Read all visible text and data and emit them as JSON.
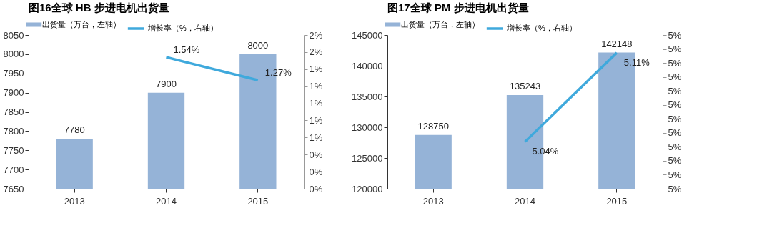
{
  "chart_data": [
    {
      "type": "bar",
      "title": "图16全球 HB 步进电机出货量",
      "categories": [
        "2013",
        "2014",
        "2015"
      ],
      "series": [
        {
          "name": "出货量（万台，左轴）",
          "color": "#95b3d7",
          "values": [
            7780,
            7900,
            8000
          ],
          "value_labels": [
            "7780",
            "7900",
            "8000"
          ]
        },
        {
          "name": "增长率（%，右轴）",
          "type": "line",
          "axis": "y2",
          "color": "#3fa9dc",
          "values": [
            null,
            1.54,
            1.27
          ],
          "value_labels": [
            null,
            "1.54%",
            "1.27%"
          ]
        }
      ],
      "ylim": [
        7650,
        8050
      ],
      "yticks": [
        7650,
        7700,
        7750,
        7800,
        7850,
        7900,
        7950,
        8000,
        8050
      ],
      "y2lim": [
        0,
        1.8
      ],
      "y2ticks": [
        {
          "value": 0,
          "label": "0%"
        },
        {
          "value": 0.2,
          "label": "0%"
        },
        {
          "value": 0.4,
          "label": "0%"
        },
        {
          "value": 0.6,
          "label": "1%"
        },
        {
          "value": 0.8,
          "label": "1%"
        },
        {
          "value": 1.0,
          "label": "1%"
        },
        {
          "value": 1.2,
          "label": "1%"
        },
        {
          "value": 1.4,
          "label": "1%"
        },
        {
          "value": 1.6,
          "label": "2%"
        },
        {
          "value": 1.8,
          "label": "2%"
        }
      ],
      "legend": "top"
    },
    {
      "type": "bar",
      "title": "图17全球 PM 步进电机出货量",
      "categories": [
        "2013",
        "2014",
        "2015"
      ],
      "series": [
        {
          "name": "出货量（万台，左轴）",
          "color": "#95b3d7",
          "values": [
            128750,
            135243,
            142148
          ],
          "value_labels": [
            "128750",
            "135243",
            "142148"
          ]
        },
        {
          "name": "增长率（%，右轴）",
          "type": "line",
          "axis": "y2",
          "color": "#3fa9dc",
          "values": [
            null,
            5.04,
            5.11
          ],
          "value_labels": [
            null,
            "5.04%",
            "5.11%"
          ]
        }
      ],
      "ylim": [
        120000,
        145000
      ],
      "yticks": [
        120000,
        125000,
        130000,
        135000,
        140000,
        145000
      ],
      "y2lim": [
        5.003,
        5.124
      ],
      "y2ticks": [
        {
          "value": 5.003,
          "label": "5%"
        },
        {
          "value": 5.014,
          "label": "5%"
        },
        {
          "value": 5.025,
          "label": "5%"
        },
        {
          "value": 5.036,
          "label": "5%"
        },
        {
          "value": 5.047,
          "label": "5%"
        },
        {
          "value": 5.058,
          "label": "5%"
        },
        {
          "value": 5.069,
          "label": "5%"
        },
        {
          "value": 5.08,
          "label": "5%"
        },
        {
          "value": 5.091,
          "label": "5%"
        },
        {
          "value": 5.102,
          "label": "5%"
        },
        {
          "value": 5.113,
          "label": "5%"
        },
        {
          "value": 5.124,
          "label": "5%"
        }
      ],
      "legend": "top"
    }
  ]
}
